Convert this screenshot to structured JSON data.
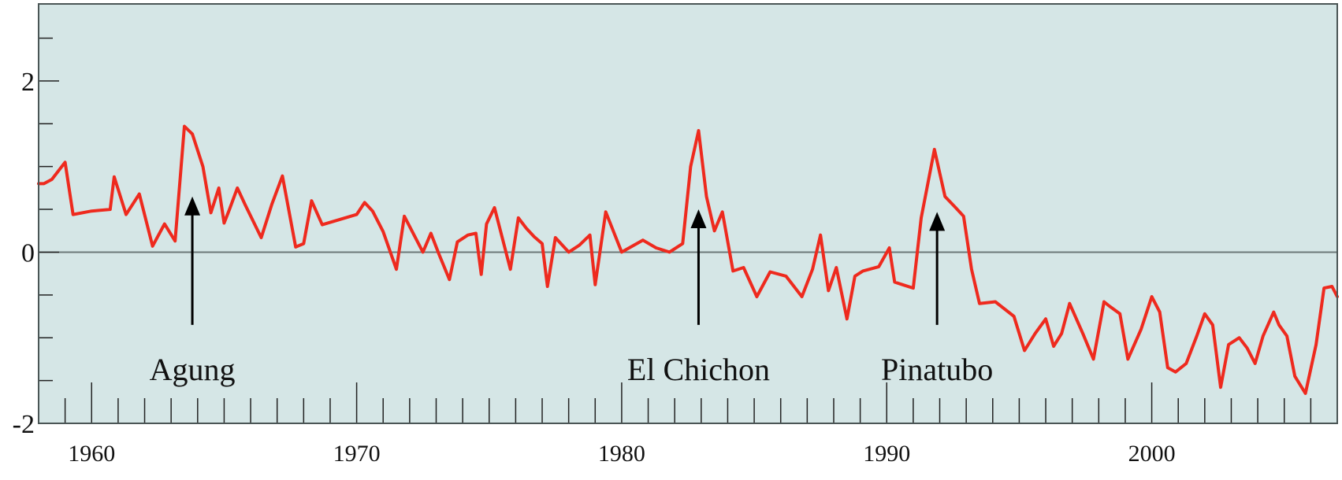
{
  "chart_data": {
    "type": "line",
    "title": "",
    "xlabel": "",
    "ylabel": "",
    "xlim": [
      1958,
      2007
    ],
    "ylim": [
      -2,
      2.9
    ],
    "grid": false,
    "zero_line": true,
    "x_ticks": [
      1960,
      1970,
      1980,
      1990,
      2000
    ],
    "x_tick_labels": [
      "1960",
      "1970",
      "1980",
      "1990",
      "2000"
    ],
    "y_ticks": [
      -2,
      0,
      2
    ],
    "y_tick_labels": [
      "-2",
      "0",
      "2"
    ],
    "colors": {
      "plot_background": "#d5e6e6",
      "series": "#ee2a1e",
      "zero_line": "#6b7878",
      "arrow": "#000000"
    },
    "series": [
      {
        "x": [
          1958.0,
          1958.2,
          1958.5,
          1959.0,
          1959.3,
          1960.0,
          1960.7,
          1960.85,
          1961.3,
          1961.8,
          1962.3,
          1962.75,
          1963.15,
          1963.5,
          1963.8,
          1964.2,
          1964.5,
          1964.8,
          1965.0,
          1965.2,
          1965.5,
          1965.8,
          1966.4,
          1966.8,
          1967.2,
          1967.7,
          1968.0,
          1968.3,
          1968.7,
          1970.0,
          1970.3,
          1970.6,
          1971.0,
          1971.5,
          1971.8,
          1972.2,
          1972.5,
          1972.8,
          1973.1,
          1973.5,
          1973.8,
          1974.2,
          1974.5,
          1974.7,
          1974.9,
          1975.2,
          1975.8,
          1976.1,
          1976.4,
          1976.7,
          1977.0,
          1977.2,
          1977.5,
          1978.0,
          1978.4,
          1978.8,
          1979.0,
          1979.4,
          1980.0,
          1980.8,
          1981.3,
          1981.8,
          1982.3,
          1982.6,
          1982.9,
          1983.2,
          1983.5,
          1983.8,
          1984.2,
          1984.6,
          1985.1,
          1985.6,
          1986.2,
          1986.8,
          1987.2,
          1987.5,
          1987.8,
          1988.1,
          1988.5,
          1988.8,
          1989.1,
          1989.7,
          1990.1,
          1990.3,
          1990.6,
          1991.0,
          1991.3,
          1991.8,
          1992.2,
          1992.6,
          1992.9,
          1993.2,
          1993.5,
          1994.1,
          1994.8,
          1995.2,
          1995.6,
          1996.0,
          1996.3,
          1996.6,
          1996.9,
          1997.4,
          1997.8,
          1998.2,
          1998.4,
          1998.8,
          1999.1,
          1999.6,
          2000.0,
          2000.3,
          2000.6,
          2000.9,
          2001.3,
          2001.7,
          2002.0,
          2002.3,
          2002.6,
          2002.9,
          2003.3,
          2003.6,
          2003.9,
          2004.2,
          2004.6,
          2004.8,
          2005.1,
          2005.4,
          2005.8,
          2006.2,
          2006.5,
          2006.8,
          2007.0
        ],
        "y": [
          0.8,
          0.8,
          0.85,
          1.05,
          0.44,
          0.48,
          0.5,
          0.88,
          0.44,
          0.68,
          0.07,
          0.33,
          0.13,
          1.47,
          1.38,
          1.0,
          0.46,
          0.75,
          0.34,
          0.5,
          0.75,
          0.55,
          0.17,
          0.56,
          0.89,
          0.06,
          0.1,
          0.6,
          0.32,
          0.44,
          0.58,
          0.48,
          0.24,
          -0.2,
          0.42,
          0.18,
          0.0,
          0.22,
          -0.02,
          -0.32,
          0.12,
          0.2,
          0.22,
          -0.26,
          0.33,
          0.52,
          -0.2,
          0.4,
          0.28,
          0.18,
          0.1,
          -0.4,
          0.17,
          0.0,
          0.08,
          0.2,
          -0.38,
          0.47,
          0.0,
          0.14,
          0.05,
          0.0,
          0.1,
          1.0,
          1.42,
          0.65,
          0.25,
          0.47,
          -0.22,
          -0.18,
          -0.52,
          -0.23,
          -0.28,
          -0.52,
          -0.2,
          0.2,
          -0.45,
          -0.18,
          -0.78,
          -0.28,
          -0.22,
          -0.17,
          0.05,
          -0.35,
          -0.38,
          -0.42,
          0.4,
          1.2,
          0.65,
          0.52,
          0.42,
          -0.2,
          -0.6,
          -0.58,
          -0.75,
          -1.15,
          -0.95,
          -0.78,
          -1.1,
          -0.95,
          -0.6,
          -0.95,
          -1.25,
          -0.58,
          -0.63,
          -0.72,
          -1.25,
          -0.9,
          -0.52,
          -0.7,
          -1.35,
          -1.4,
          -1.3,
          -0.98,
          -0.72,
          -0.85,
          -1.58,
          -1.08,
          -1.0,
          -1.12,
          -1.3,
          -0.98,
          -0.7,
          -0.85,
          -0.98,
          -1.45,
          -1.65,
          -1.08,
          -0.42,
          -0.4,
          -0.52
        ]
      }
    ],
    "annotations": [
      {
        "label": "Agung",
        "x": 1963.8,
        "y_tip": 0.65,
        "y_tail": -0.85
      },
      {
        "label": "El Chichon",
        "x": 1982.9,
        "y_tip": 0.5,
        "y_tail": -0.85
      },
      {
        "label": "Pinatubo",
        "x": 1991.9,
        "y_tip": 0.47,
        "y_tail": -0.85
      }
    ]
  }
}
